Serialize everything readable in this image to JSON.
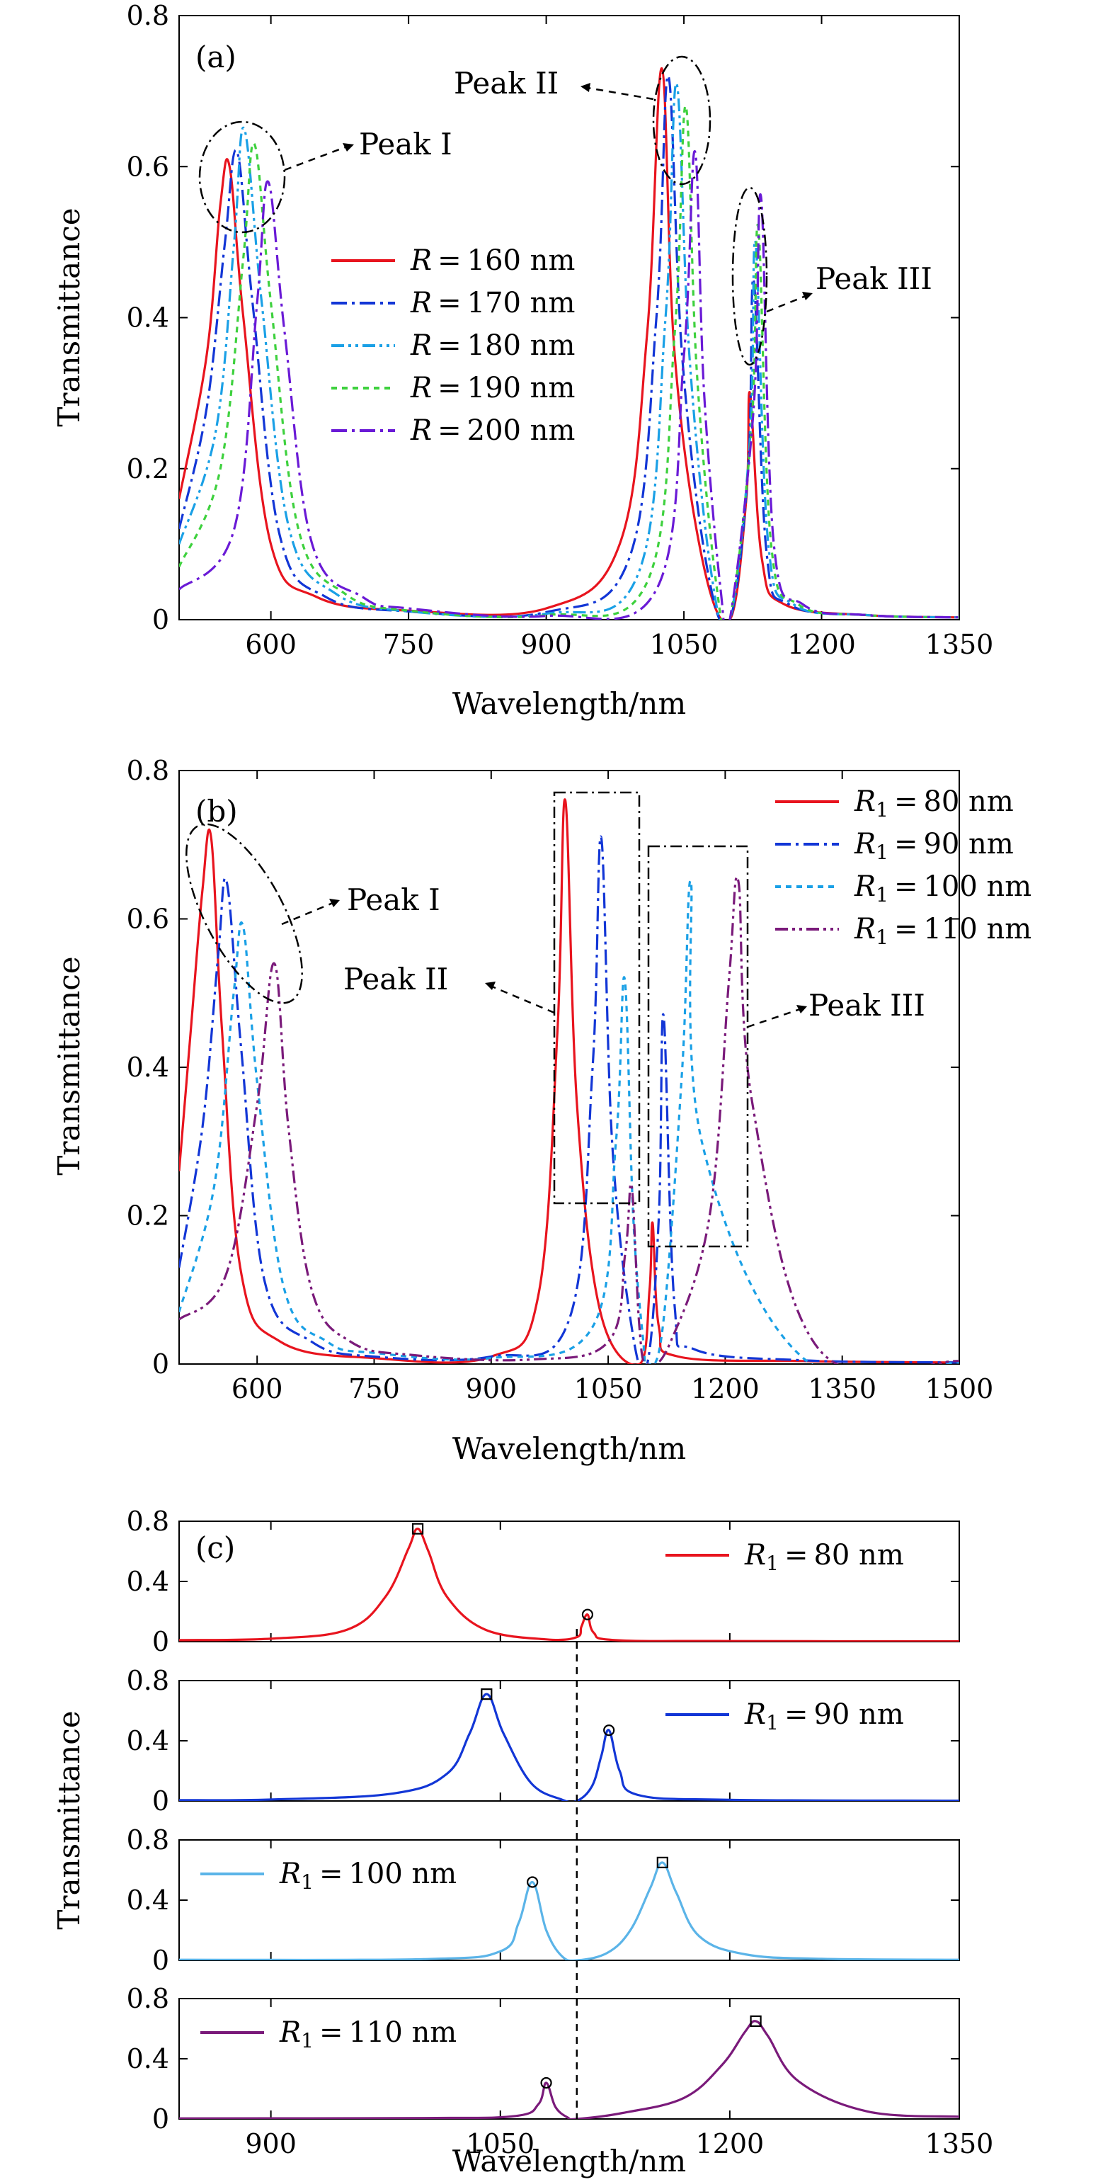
{
  "figure": {
    "y_axis_label": "Transmittance",
    "x_axis_label": "Wavelength/nm"
  },
  "chart_data": [
    {
      "panel": "(a)",
      "type": "line",
      "xlabel": "Wavelength/nm",
      "ylabel": "Transmittance",
      "xlim": [
        500,
        1350
      ],
      "ylim": [
        0,
        0.8
      ],
      "xticks": [
        "600",
        "750",
        "900",
        "1050",
        "1200",
        "1350"
      ],
      "yticks": [
        "0",
        "0.2",
        "0.4",
        "0.6",
        "0.8"
      ],
      "legend_position": "center-left",
      "annotations": [
        "Peak I",
        "Peak II",
        "Peak III"
      ],
      "series": [
        {
          "name": "R = 160 nm",
          "color": "#e8141e",
          "dash": "solid",
          "x": [
            500,
            530,
            545,
            555,
            570,
            600,
            650,
            750,
            900,
            980,
            1010,
            1026,
            1040,
            1070,
            1100,
            1118,
            1122,
            1135,
            1160,
            1250,
            1350
          ],
          "y": [
            0.16,
            0.35,
            0.55,
            0.6,
            0.4,
            0.1,
            0.03,
            0.012,
            0.015,
            0.1,
            0.38,
            0.73,
            0.35,
            0.08,
            0.0,
            0.16,
            0.3,
            0.08,
            0.02,
            0.006,
            0.003
          ]
        },
        {
          "name": "R = 170 nm",
          "color": "#1236d6",
          "dash": "dashdot",
          "x": [
            500,
            530,
            550,
            563,
            580,
            610,
            660,
            750,
            900,
            990,
            1020,
            1033,
            1048,
            1075,
            1100,
            1120,
            1126,
            1140,
            1165,
            1250,
            1350
          ],
          "y": [
            0.12,
            0.28,
            0.5,
            0.62,
            0.42,
            0.11,
            0.03,
            0.011,
            0.01,
            0.08,
            0.4,
            0.72,
            0.35,
            0.07,
            0.0,
            0.2,
            0.45,
            0.09,
            0.02,
            0.006,
            0.003
          ]
        },
        {
          "name": "R = 180 nm",
          "color": "#1aa0e6",
          "dash": "dashdotdot",
          "x": [
            500,
            540,
            560,
            571,
            590,
            620,
            670,
            750,
            900,
            1000,
            1030,
            1042,
            1056,
            1080,
            1100,
            1122,
            1128,
            1142,
            1170,
            1250,
            1350
          ],
          "y": [
            0.1,
            0.25,
            0.5,
            0.65,
            0.42,
            0.12,
            0.035,
            0.011,
            0.008,
            0.06,
            0.4,
            0.71,
            0.35,
            0.06,
            0.0,
            0.24,
            0.5,
            0.1,
            0.02,
            0.006,
            0.003
          ]
        },
        {
          "name": "R = 190 nm",
          "color": "#3ed13e",
          "dash": "dotted",
          "x": [
            500,
            545,
            570,
            582,
            600,
            630,
            680,
            750,
            900,
            1010,
            1040,
            1052,
            1064,
            1085,
            1100,
            1124,
            1131,
            1145,
            1175,
            1250,
            1350
          ],
          "y": [
            0.07,
            0.2,
            0.48,
            0.63,
            0.42,
            0.12,
            0.035,
            0.012,
            0.006,
            0.05,
            0.38,
            0.68,
            0.33,
            0.05,
            0.0,
            0.26,
            0.52,
            0.1,
            0.02,
            0.006,
            0.003
          ]
        },
        {
          "name": "R = 200 nm",
          "color": "#6a1ad6",
          "dash": "dashdot",
          "x": [
            500,
            560,
            585,
            597,
            615,
            645,
            700,
            750,
            900,
            1020,
            1050,
            1062,
            1072,
            1090,
            1100,
            1126,
            1134,
            1148,
            1180,
            1250,
            1350
          ],
          "y": [
            0.04,
            0.12,
            0.42,
            0.58,
            0.38,
            0.1,
            0.03,
            0.015,
            0.005,
            0.04,
            0.35,
            0.62,
            0.3,
            0.04,
            0.0,
            0.28,
            0.56,
            0.1,
            0.02,
            0.006,
            0.003
          ]
        }
      ]
    },
    {
      "panel": "(b)",
      "type": "line",
      "xlabel": "Wavelength/nm",
      "ylabel": "Transmittance",
      "xlim": [
        500,
        1500
      ],
      "ylim": [
        0,
        0.8
      ],
      "xticks": [
        "600",
        "750",
        "900",
        "1050",
        "1200",
        "1350",
        "1500"
      ],
      "yticks": [
        "0",
        "0.2",
        "0.4",
        "0.6",
        "0.8"
      ],
      "legend_position": "top-right",
      "annotations": [
        "Peak I",
        "Peak II",
        "Peak III"
      ],
      "series": [
        {
          "name": "R1 = 80 nm",
          "color": "#e8141e",
          "dash": "solid",
          "x": [
            500,
            515,
            530,
            541,
            555,
            580,
            630,
            750,
            900,
            960,
            985,
            995,
            1010,
            1040,
            1090,
            1103,
            1107,
            1115,
            1140,
            1300,
            1500
          ],
          "y": [
            0.26,
            0.45,
            0.64,
            0.71,
            0.45,
            0.12,
            0.03,
            0.008,
            0.01,
            0.09,
            0.45,
            0.76,
            0.35,
            0.07,
            0.0,
            0.1,
            0.19,
            0.05,
            0.01,
            0.004,
            0.002
          ]
        },
        {
          "name": "R1 = 90 nm",
          "color": "#1236d6",
          "dash": "dashdot",
          "x": [
            500,
            530,
            550,
            561,
            580,
            610,
            670,
            750,
            900,
            1000,
            1030,
            1041,
            1055,
            1080,
            1100,
            1115,
            1121,
            1135,
            1160,
            1300,
            1500
          ],
          "y": [
            0.13,
            0.32,
            0.55,
            0.65,
            0.42,
            0.11,
            0.03,
            0.01,
            0.01,
            0.06,
            0.4,
            0.71,
            0.3,
            0.05,
            0.0,
            0.2,
            0.47,
            0.08,
            0.02,
            0.005,
            0.002
          ]
        },
        {
          "name": "R1 = 100 nm",
          "color": "#1aa0e6",
          "dash": "dotted",
          "x": [
            500,
            545,
            570,
            582,
            600,
            635,
            690,
            750,
            900,
            1030,
            1060,
            1071,
            1082,
            1095,
            1100,
            1120,
            1145,
            1156,
            1170,
            1300,
            1500
          ],
          "y": [
            0.07,
            0.24,
            0.5,
            0.59,
            0.38,
            0.1,
            0.03,
            0.015,
            0.008,
            0.05,
            0.3,
            0.52,
            0.2,
            0.03,
            0.0,
            0.05,
            0.4,
            0.65,
            0.3,
            0.008,
            0.002
          ]
        },
        {
          "name": "R1 = 110 nm",
          "color": "#7a1a7a",
          "dash": "dashdotdot",
          "x": [
            500,
            560,
            600,
            622,
            640,
            670,
            720,
            800,
            950,
            1050,
            1072,
            1080,
            1090,
            1100,
            1130,
            1180,
            1205,
            1217,
            1235,
            1320,
            1500
          ],
          "y": [
            0.06,
            0.12,
            0.35,
            0.54,
            0.32,
            0.1,
            0.03,
            0.012,
            0.006,
            0.03,
            0.15,
            0.24,
            0.05,
            0.0,
            0.03,
            0.2,
            0.52,
            0.65,
            0.35,
            0.02,
            0.004
          ]
        }
      ]
    },
    {
      "panel": "(c)",
      "type": "line",
      "xlabel": "Wavelength/nm",
      "ylabel": "Transmittance",
      "xlim": [
        840,
        1350
      ],
      "ylim": [
        0,
        0.8
      ],
      "xticks": [
        "900",
        "1050",
        "1200",
        "1350"
      ],
      "yticks": [
        "0",
        "0.4",
        "0.8"
      ],
      "dashed_vertical_line_x": 1100,
      "subplots": [
        {
          "name": "R1 = 80 nm",
          "color": "#e8141e",
          "legend_position": "top-right",
          "x": [
            840,
            900,
            950,
            975,
            990,
            996,
            1003,
            1015,
            1040,
            1080,
            1100,
            1103,
            1107,
            1111,
            1125,
            1200,
            1350
          ],
          "y": [
            0.01,
            0.02,
            0.08,
            0.3,
            0.62,
            0.75,
            0.6,
            0.3,
            0.08,
            0.015,
            0.03,
            0.1,
            0.18,
            0.06,
            0.01,
            0.004,
            0.002
          ],
          "square_marker": [
            996,
            0.75
          ],
          "circle_marker": [
            1107,
            0.18
          ]
        },
        {
          "name": "R1 = 90 nm",
          "color": "#1236d6",
          "legend_position": "top-right",
          "x": [
            840,
            900,
            980,
            1015,
            1030,
            1041,
            1052,
            1070,
            1090,
            1100,
            1110,
            1116,
            1121,
            1128,
            1140,
            1200,
            1350
          ],
          "y": [
            0.005,
            0.01,
            0.05,
            0.18,
            0.45,
            0.71,
            0.45,
            0.12,
            0.01,
            0.0,
            0.1,
            0.3,
            0.47,
            0.2,
            0.04,
            0.008,
            0.002
          ],
          "square_marker": [
            1041,
            0.71
          ],
          "circle_marker": [
            1121,
            0.47
          ]
        },
        {
          "name": "R1 = 100 nm",
          "color": "#5bb4e8",
          "legend_position": "top-left",
          "x": [
            840,
            1000,
            1050,
            1062,
            1071,
            1080,
            1090,
            1100,
            1120,
            1135,
            1148,
            1156,
            1165,
            1180,
            1210,
            1260,
            1350
          ],
          "y": [
            0.004,
            0.008,
            0.06,
            0.25,
            0.52,
            0.2,
            0.03,
            0.0,
            0.05,
            0.2,
            0.48,
            0.65,
            0.45,
            0.16,
            0.04,
            0.01,
            0.004
          ],
          "square_marker": [
            1156,
            0.65
          ],
          "circle_marker": [
            1071,
            0.52
          ]
        },
        {
          "name": "R1 = 110 nm",
          "color": "#7a1a7a",
          "legend_position": "top-left",
          "x": [
            840,
            1000,
            1060,
            1075,
            1080,
            1086,
            1094,
            1100,
            1130,
            1170,
            1195,
            1210,
            1217,
            1225,
            1245,
            1290,
            1350
          ],
          "y": [
            0.004,
            0.006,
            0.02,
            0.1,
            0.24,
            0.08,
            0.01,
            0.0,
            0.04,
            0.14,
            0.36,
            0.58,
            0.65,
            0.55,
            0.25,
            0.05,
            0.015
          ],
          "square_marker": [
            1217,
            0.65
          ],
          "circle_marker": [
            1080,
            0.24
          ]
        }
      ]
    }
  ]
}
